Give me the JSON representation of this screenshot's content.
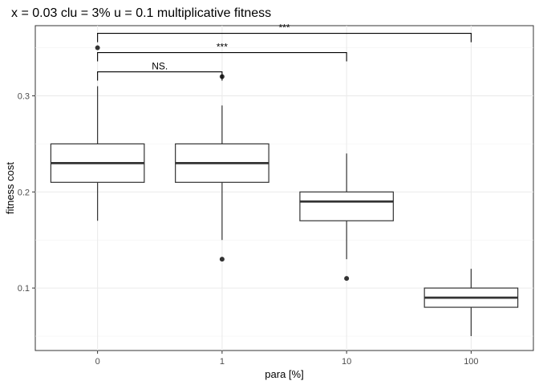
{
  "chart_data": {
    "type": "box",
    "title": "x = 0.03   clu = 3%   u = 0.1 multiplicative fitness",
    "xlabel": "para [%]",
    "ylabel": "fitness cost",
    "categories": [
      "0",
      "1",
      "10",
      "100"
    ],
    "ylim": [
      0.035,
      0.373
    ],
    "yticks": [
      0.1,
      0.2,
      0.3
    ],
    "ytick_labels": [
      "0.1",
      "0.2",
      "0.3"
    ],
    "grid": true,
    "boxes": [
      {
        "category": "0",
        "whisker_low": 0.17,
        "q1": 0.21,
        "median": 0.23,
        "q3": 0.25,
        "whisker_high": 0.31,
        "outliers": [
          0.35
        ]
      },
      {
        "category": "1",
        "whisker_low": 0.15,
        "q1": 0.21,
        "median": 0.23,
        "q3": 0.25,
        "whisker_high": 0.29,
        "outliers": [
          0.13,
          0.32
        ]
      },
      {
        "category": "10",
        "whisker_low": 0.13,
        "q1": 0.17,
        "median": 0.19,
        "q3": 0.2,
        "whisker_high": 0.24,
        "outliers": [
          0.11
        ]
      },
      {
        "category": "100",
        "whisker_low": 0.05,
        "q1": 0.08,
        "median": 0.09,
        "q3": 0.1,
        "whisker_high": 0.12,
        "outliers": []
      }
    ],
    "significance": [
      {
        "from": "0",
        "to": "1",
        "label": "NS.",
        "level": 0.325
      },
      {
        "from": "0",
        "to": "10",
        "label": "***",
        "level": 0.345
      },
      {
        "from": "0",
        "to": "100",
        "label": "***",
        "level": 0.365
      }
    ]
  }
}
